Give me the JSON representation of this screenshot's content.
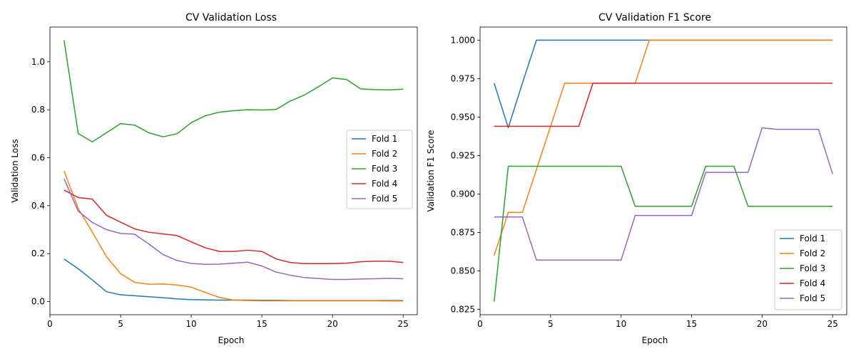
{
  "chart_data": [
    {
      "type": "line",
      "title": "CV Validation Loss",
      "xlabel": "Epoch",
      "ylabel": "Validation Loss",
      "xlim": [
        0,
        26
      ],
      "ylim": [
        -0.055,
        1.145
      ],
      "xticks": [
        0,
        5,
        10,
        15,
        20,
        25
      ],
      "xtick_labels": [
        "0",
        "5",
        "10",
        "15",
        "20",
        "25"
      ],
      "yticks": [
        0.0,
        0.2,
        0.4,
        0.6,
        0.8,
        1.0
      ],
      "ytick_labels": [
        "0.0",
        "0.2",
        "0.4",
        "0.6",
        "0.8",
        "1.0"
      ],
      "grid": false,
      "legend_position": "center-right",
      "x": [
        1,
        2,
        3,
        4,
        5,
        6,
        7,
        8,
        9,
        10,
        11,
        12,
        13,
        14,
        15,
        16,
        17,
        18,
        19,
        20,
        21,
        22,
        23,
        24,
        25
      ],
      "series": [
        {
          "name": "Fold 1",
          "color": "#1f77b4",
          "values": [
            0.177,
            0.137,
            0.09,
            0.041,
            0.028,
            0.024,
            0.02,
            0.016,
            0.011,
            0.008,
            0.007,
            0.006,
            0.006,
            0.006,
            0.005,
            0.005,
            0.004,
            0.004,
            0.004,
            0.004,
            0.004,
            0.004,
            0.004,
            0.004,
            0.004
          ]
        },
        {
          "name": "Fold 2",
          "color": "#ff7f0e",
          "values": [
            0.545,
            0.388,
            0.29,
            0.187,
            0.116,
            0.08,
            0.072,
            0.073,
            0.069,
            0.06,
            0.038,
            0.017,
            0.006,
            0.004,
            0.003,
            0.003,
            0.003,
            0.003,
            0.003,
            0.003,
            0.003,
            0.003,
            0.003,
            0.002,
            0.002
          ]
        },
        {
          "name": "Fold 3",
          "color": "#2ca02c",
          "values": [
            1.09,
            0.701,
            0.666,
            0.704,
            0.742,
            0.736,
            0.704,
            0.687,
            0.7,
            0.746,
            0.775,
            0.79,
            0.796,
            0.8,
            0.799,
            0.801,
            0.836,
            0.861,
            0.896,
            0.933,
            0.926,
            0.887,
            0.884,
            0.883,
            0.886
          ]
        },
        {
          "name": "Fold 4",
          "color": "#d62728",
          "values": [
            0.465,
            0.434,
            0.427,
            0.36,
            0.331,
            0.303,
            0.289,
            0.282,
            0.275,
            0.249,
            0.224,
            0.209,
            0.209,
            0.214,
            0.209,
            0.178,
            0.163,
            0.158,
            0.158,
            0.158,
            0.16,
            0.166,
            0.168,
            0.168,
            0.163
          ]
        },
        {
          "name": "Fold 5",
          "color": "#9467bd",
          "values": [
            0.512,
            0.377,
            0.33,
            0.3,
            0.284,
            0.281,
            0.24,
            0.196,
            0.171,
            0.159,
            0.155,
            0.156,
            0.16,
            0.164,
            0.148,
            0.123,
            0.11,
            0.1,
            0.096,
            0.092,
            0.092,
            0.094,
            0.095,
            0.097,
            0.095
          ]
        }
      ]
    },
    {
      "type": "line",
      "title": "CV Validation F1 Score",
      "xlabel": "Epoch",
      "ylabel": "Validation F1 Score",
      "xlim": [
        0,
        26
      ],
      "ylim": [
        0.8215,
        1.0085
      ],
      "xticks": [
        0,
        5,
        10,
        15,
        20,
        25
      ],
      "xtick_labels": [
        "0",
        "5",
        "10",
        "15",
        "20",
        "25"
      ],
      "yticks": [
        0.825,
        0.85,
        0.875,
        0.9,
        0.925,
        0.95,
        0.975,
        1.0
      ],
      "ytick_labels": [
        "0.825",
        "0.850",
        "0.875",
        "0.900",
        "0.925",
        "0.950",
        "0.975",
        "1.000"
      ],
      "grid": false,
      "legend_position": "lower-right",
      "x": [
        1,
        2,
        3,
        4,
        5,
        6,
        7,
        8,
        9,
        10,
        11,
        12,
        13,
        14,
        15,
        16,
        17,
        18,
        19,
        20,
        21,
        22,
        23,
        24,
        25
      ],
      "series": [
        {
          "name": "Fold 1",
          "color": "#1f77b4",
          "values": [
            0.972,
            0.943,
            0.972,
            1.0,
            1.0,
            1.0,
            1.0,
            1.0,
            1.0,
            1.0,
            1.0,
            1.0,
            1.0,
            1.0,
            1.0,
            1.0,
            1.0,
            1.0,
            1.0,
            1.0,
            1.0,
            1.0,
            1.0,
            1.0,
            1.0
          ]
        },
        {
          "name": "Fold 2",
          "color": "#ff7f0e",
          "values": [
            0.86,
            0.888,
            0.888,
            0.916,
            0.944,
            0.972,
            0.972,
            0.972,
            0.972,
            0.972,
            0.972,
            1.0,
            1.0,
            1.0,
            1.0,
            1.0,
            1.0,
            1.0,
            1.0,
            1.0,
            1.0,
            1.0,
            1.0,
            1.0,
            1.0
          ]
        },
        {
          "name": "Fold 3",
          "color": "#2ca02c",
          "values": [
            0.83,
            0.918,
            0.918,
            0.918,
            0.918,
            0.918,
            0.918,
            0.918,
            0.918,
            0.918,
            0.892,
            0.892,
            0.892,
            0.892,
            0.892,
            0.918,
            0.918,
            0.918,
            0.892,
            0.892,
            0.892,
            0.892,
            0.892,
            0.892,
            0.892
          ]
        },
        {
          "name": "Fold 4",
          "color": "#d62728",
          "values": [
            0.944,
            0.944,
            0.944,
            0.944,
            0.944,
            0.944,
            0.944,
            0.972,
            0.972,
            0.972,
            0.972,
            0.972,
            0.972,
            0.972,
            0.972,
            0.972,
            0.972,
            0.972,
            0.972,
            0.972,
            0.972,
            0.972,
            0.972,
            0.972,
            0.972
          ]
        },
        {
          "name": "Fold 5",
          "color": "#9467bd",
          "values": [
            0.885,
            0.885,
            0.885,
            0.857,
            0.857,
            0.857,
            0.857,
            0.857,
            0.857,
            0.857,
            0.886,
            0.886,
            0.886,
            0.886,
            0.886,
            0.914,
            0.914,
            0.914,
            0.914,
            0.943,
            0.942,
            0.942,
            0.942,
            0.942,
            0.913
          ]
        }
      ]
    }
  ]
}
